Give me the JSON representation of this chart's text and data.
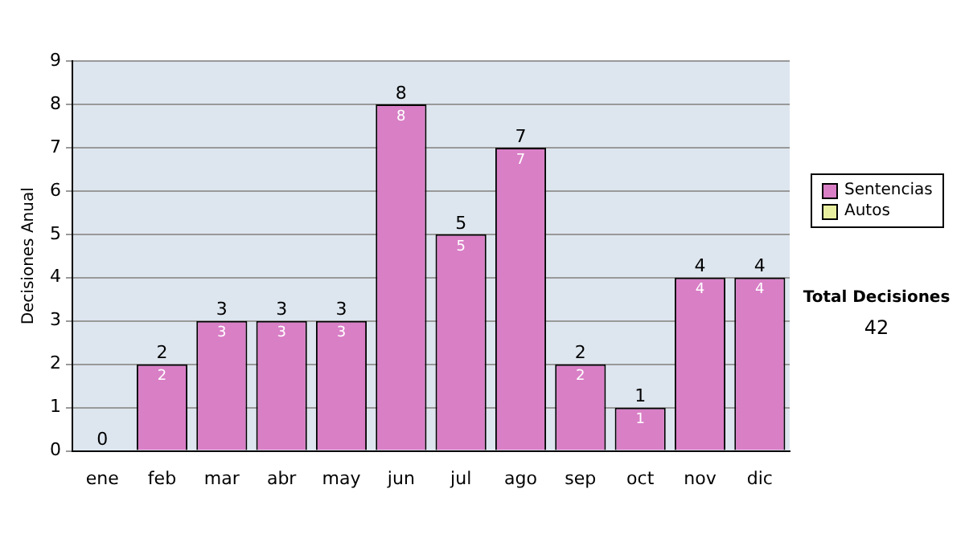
{
  "chart_data": {
    "type": "bar",
    "ylabel": "Decisiones Anual",
    "categories": [
      "ene",
      "feb",
      "mar",
      "abr",
      "may",
      "jun",
      "jul",
      "ago",
      "sep",
      "oct",
      "nov",
      "dic"
    ],
    "series": [
      {
        "name": "Sentencias",
        "color": "#d97fc6",
        "values": [
          0,
          2,
          3,
          3,
          3,
          8,
          5,
          7,
          2,
          1,
          4,
          4
        ],
        "value_labels": [
          null,
          "2",
          "3",
          "3",
          "3",
          "8",
          "5",
          "7",
          "2",
          "1",
          "4",
          "4"
        ]
      },
      {
        "name": "Autos",
        "color": "#e8f0a0",
        "values": [
          0,
          0,
          0,
          0,
          0,
          0,
          0,
          0,
          0,
          0,
          0,
          0
        ]
      }
    ],
    "stacked": true,
    "totals": [
      "0",
      "2",
      "3",
      "3",
      "3",
      "8",
      "5",
      "7",
      "2",
      "1",
      "4",
      "4"
    ],
    "ylim": [
      0,
      9
    ],
    "yticks": [
      0,
      1,
      2,
      3,
      4,
      5,
      6,
      7,
      8,
      9
    ],
    "grid": "y",
    "legend": "right",
    "annotations": [
      "Total Decisiones",
      "42"
    ]
  }
}
